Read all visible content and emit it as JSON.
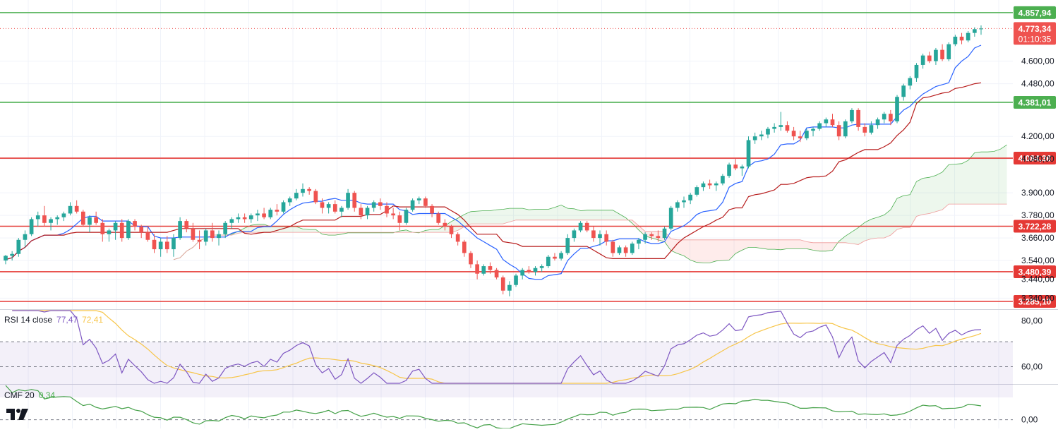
{
  "colors": {
    "up": "#26a69a",
    "down": "#ef5350",
    "tenkan": "#2962ff",
    "kijun": "#b71c1c",
    "cloud_bull": "#4caf50",
    "cloud_bear": "#f44336",
    "support_resistance_green": "#4caf50",
    "support_resistance_red": "#e53935",
    "rsi": "#7e57c2",
    "rsi_ma": "#f7c548",
    "cmf": "#43a047"
  },
  "chart_data": [
    {
      "type": "candlestick",
      "pane": "price",
      "ylim": [
        3285.1,
        4880
      ],
      "y_ticks": [
        "4.600,00",
        "4.480,00",
        "4.200,00",
        "4.080,00",
        "3.900,00",
        "3.780,00",
        "3.660,00",
        "3.540,00",
        "3.440,00",
        "3.340,00"
      ],
      "horizontal_levels": [
        {
          "value": 4857.94,
          "label": "4.857,94",
          "color": "green"
        },
        {
          "value": 4381.01,
          "label": "4.381,01",
          "color": "green"
        },
        {
          "value": 4084.36,
          "label": "4.084,36",
          "color": "red"
        },
        {
          "value": 3722.28,
          "label": "3.722,28",
          "color": "red"
        },
        {
          "value": 3480.39,
          "label": "3.480,39",
          "color": "red"
        },
        {
          "value": 3285.1,
          "label": "3.285,10",
          "color": "red"
        }
      ],
      "last_price": {
        "value": 4773.34,
        "label": "4.773,34",
        "countdown": "01:10:35"
      },
      "candles": [
        [
          3540,
          3570,
          3520,
          3565
        ],
        [
          3565,
          3590,
          3540,
          3575
        ],
        [
          3575,
          3660,
          3560,
          3650
        ],
        [
          3650,
          3700,
          3610,
          3680
        ],
        [
          3680,
          3770,
          3670,
          3760
        ],
        [
          3760,
          3800,
          3720,
          3780
        ],
        [
          3780,
          3830,
          3720,
          3740
        ],
        [
          3740,
          3770,
          3700,
          3760
        ],
        [
          3760,
          3780,
          3730,
          3770
        ],
        [
          3770,
          3800,
          3750,
          3790
        ],
        [
          3790,
          3850,
          3780,
          3830
        ],
        [
          3830,
          3860,
          3790,
          3800
        ],
        [
          3800,
          3810,
          3720,
          3730
        ],
        [
          3730,
          3780,
          3690,
          3770
        ],
        [
          3770,
          3800,
          3730,
          3740
        ],
        [
          3740,
          3760,
          3640,
          3680
        ],
        [
          3680,
          3710,
          3640,
          3700
        ],
        [
          3700,
          3750,
          3650,
          3740
        ],
        [
          3740,
          3760,
          3640,
          3660
        ],
        [
          3660,
          3760,
          3650,
          3750
        ],
        [
          3750,
          3760,
          3700,
          3720
        ],
        [
          3720,
          3730,
          3660,
          3690
        ],
        [
          3690,
          3720,
          3640,
          3650
        ],
        [
          3650,
          3680,
          3580,
          3600
        ],
        [
          3600,
          3660,
          3560,
          3640
        ],
        [
          3640,
          3670,
          3580,
          3600
        ],
        [
          3600,
          3680,
          3560,
          3660
        ],
        [
          3660,
          3770,
          3650,
          3750
        ],
        [
          3750,
          3760,
          3690,
          3710
        ],
        [
          3710,
          3740,
          3640,
          3650
        ],
        [
          3650,
          3700,
          3600,
          3640
        ],
        [
          3640,
          3710,
          3620,
          3700
        ],
        [
          3700,
          3740,
          3640,
          3660
        ],
        [
          3660,
          3700,
          3620,
          3680
        ],
        [
          3680,
          3750,
          3660,
          3740
        ],
        [
          3740,
          3770,
          3710,
          3760
        ],
        [
          3760,
          3790,
          3740,
          3770
        ],
        [
          3770,
          3790,
          3740,
          3760
        ],
        [
          3760,
          3790,
          3740,
          3780
        ],
        [
          3780,
          3810,
          3750,
          3790
        ],
        [
          3790,
          3820,
          3760,
          3770
        ],
        [
          3770,
          3820,
          3760,
          3810
        ],
        [
          3810,
          3840,
          3780,
          3800
        ],
        [
          3800,
          3860,
          3790,
          3850
        ],
        [
          3850,
          3880,
          3830,
          3870
        ],
        [
          3870,
          3920,
          3860,
          3900
        ],
        [
          3900,
          3950,
          3880,
          3920
        ],
        [
          3920,
          3930,
          3890,
          3910
        ],
        [
          3910,
          3920,
          3840,
          3850
        ],
        [
          3850,
          3870,
          3790,
          3820
        ],
        [
          3820,
          3850,
          3790,
          3840
        ],
        [
          3840,
          3860,
          3790,
          3800
        ],
        [
          3800,
          3830,
          3770,
          3820
        ],
        [
          3820,
          3920,
          3810,
          3900
        ],
        [
          3900,
          3910,
          3800,
          3820
        ],
        [
          3820,
          3840,
          3760,
          3780
        ],
        [
          3780,
          3830,
          3760,
          3820
        ],
        [
          3820,
          3860,
          3800,
          3850
        ],
        [
          3850,
          3870,
          3810,
          3830
        ],
        [
          3830,
          3850,
          3770,
          3790
        ],
        [
          3790,
          3820,
          3760,
          3780
        ],
        [
          3780,
          3800,
          3700,
          3740
        ],
        [
          3740,
          3820,
          3730,
          3810
        ],
        [
          3810,
          3870,
          3800,
          3860
        ],
        [
          3860,
          3880,
          3840,
          3870
        ],
        [
          3870,
          3880,
          3820,
          3830
        ],
        [
          3830,
          3840,
          3770,
          3790
        ],
        [
          3790,
          3800,
          3730,
          3740
        ],
        [
          3740,
          3760,
          3700,
          3720
        ],
        [
          3720,
          3730,
          3660,
          3680
        ],
        [
          3680,
          3690,
          3620,
          3640
        ],
        [
          3640,
          3650,
          3560,
          3580
        ],
        [
          3580,
          3590,
          3500,
          3520
        ],
        [
          3520,
          3540,
          3440,
          3470
        ],
        [
          3470,
          3520,
          3460,
          3510
        ],
        [
          3510,
          3530,
          3470,
          3490
        ],
        [
          3490,
          3500,
          3440,
          3450
        ],
        [
          3450,
          3460,
          3360,
          3380
        ],
        [
          3380,
          3430,
          3350,
          3410
        ],
        [
          3410,
          3470,
          3400,
          3460
        ],
        [
          3460,
          3500,
          3440,
          3490
        ],
        [
          3490,
          3510,
          3470,
          3480
        ],
        [
          3480,
          3510,
          3460,
          3500
        ],
        [
          3500,
          3520,
          3480,
          3510
        ],
        [
          3510,
          3570,
          3500,
          3560
        ],
        [
          3560,
          3580,
          3540,
          3550
        ],
        [
          3550,
          3590,
          3540,
          3580
        ],
        [
          3580,
          3680,
          3570,
          3660
        ],
        [
          3660,
          3710,
          3640,
          3700
        ],
        [
          3700,
          3750,
          3690,
          3740
        ],
        [
          3740,
          3750,
          3690,
          3700
        ],
        [
          3700,
          3720,
          3640,
          3660
        ],
        [
          3660,
          3700,
          3620,
          3680
        ],
        [
          3680,
          3700,
          3620,
          3640
        ],
        [
          3640,
          3650,
          3560,
          3580
        ],
        [
          3580,
          3620,
          3570,
          3610
        ],
        [
          3610,
          3620,
          3560,
          3580
        ],
        [
          3580,
          3640,
          3570,
          3630
        ],
        [
          3630,
          3660,
          3600,
          3650
        ],
        [
          3650,
          3690,
          3630,
          3680
        ],
        [
          3680,
          3690,
          3650,
          3670
        ],
        [
          3670,
          3700,
          3640,
          3660
        ],
        [
          3660,
          3720,
          3650,
          3710
        ],
        [
          3710,
          3830,
          3700,
          3820
        ],
        [
          3820,
          3860,
          3800,
          3850
        ],
        [
          3850,
          3880,
          3820,
          3860
        ],
        [
          3860,
          3900,
          3840,
          3890
        ],
        [
          3890,
          3940,
          3880,
          3930
        ],
        [
          3930,
          3960,
          3910,
          3950
        ],
        [
          3950,
          3970,
          3920,
          3940
        ],
        [
          3940,
          3960,
          3910,
          3950
        ],
        [
          3950,
          4000,
          3940,
          3990
        ],
        [
          3990,
          4060,
          3980,
          4050
        ],
        [
          4050,
          4080,
          4020,
          4030
        ],
        [
          4030,
          4050,
          3990,
          4040
        ],
        [
          4040,
          4200,
          4030,
          4180
        ],
        [
          4180,
          4220,
          4160,
          4200
        ],
        [
          4200,
          4230,
          4180,
          4210
        ],
        [
          4210,
          4250,
          4190,
          4240
        ],
        [
          4240,
          4270,
          4220,
          4250
        ],
        [
          4250,
          4330,
          4230,
          4260
        ],
        [
          4260,
          4280,
          4220,
          4230
        ],
        [
          4230,
          4250,
          4180,
          4200
        ],
        [
          4200,
          4230,
          4170,
          4190
        ],
        [
          4190,
          4240,
          4180,
          4230
        ],
        [
          4230,
          4250,
          4200,
          4240
        ],
        [
          4240,
          4280,
          4230,
          4270
        ],
        [
          4270,
          4300,
          4250,
          4290
        ],
        [
          4290,
          4320,
          4250,
          4260
        ],
        [
          4260,
          4280,
          4180,
          4200
        ],
        [
          4200,
          4290,
          4190,
          4280
        ],
        [
          4280,
          4350,
          4270,
          4340
        ],
        [
          4340,
          4350,
          4230,
          4250
        ],
        [
          4250,
          4270,
          4200,
          4220
        ],
        [
          4220,
          4280,
          4210,
          4260
        ],
        [
          4260,
          4300,
          4240,
          4290
        ],
        [
          4290,
          4330,
          4270,
          4320
        ],
        [
          4320,
          4340,
          4260,
          4280
        ],
        [
          4280,
          4420,
          4270,
          4410
        ],
        [
          4410,
          4480,
          4390,
          4470
        ],
        [
          4470,
          4520,
          4450,
          4510
        ],
        [
          4510,
          4590,
          4490,
          4580
        ],
        [
          4580,
          4640,
          4560,
          4630
        ],
        [
          4630,
          4650,
          4590,
          4600
        ],
        [
          4600,
          4670,
          4580,
          4660
        ],
        [
          4660,
          4690,
          4600,
          4610
        ],
        [
          4610,
          4700,
          4600,
          4690
        ],
        [
          4690,
          4740,
          4680,
          4730
        ],
        [
          4730,
          4750,
          4690,
          4710
        ],
        [
          4710,
          4760,
          4700,
          4750
        ],
        [
          4750,
          4780,
          4730,
          4770
        ],
        [
          4770,
          4790,
          4740,
          4773.34
        ]
      ]
    },
    {
      "type": "line",
      "pane": "rsi",
      "y_ticks": [
        "80,00",
        "60,00"
      ],
      "ylim": [
        50,
        85
      ],
      "bands": [
        70,
        50
      ]
    },
    {
      "type": "line",
      "pane": "cmf",
      "y_ticks": [
        "0,00"
      ],
      "ylim": [
        -0.06,
        0.4
      ]
    }
  ],
  "legends": {
    "rsi": {
      "label": "RSI 14 close",
      "value1": "77,47",
      "value2": "72,41"
    },
    "cmf": {
      "label": "CMF 20",
      "value1": "0,34"
    }
  }
}
